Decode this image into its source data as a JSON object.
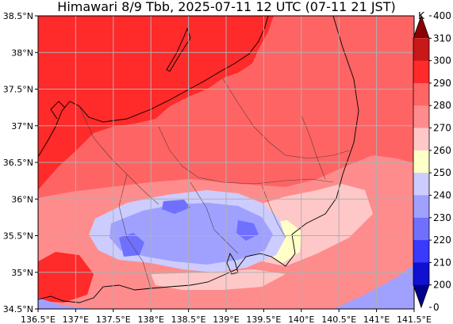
{
  "title": "Himawari 8/9 Tbb, 2025-07-11 12 UTC (07-11 21 JST)",
  "map": {
    "x_ticks": [
      "136.5°E",
      "137°E",
      "137.5°E",
      "138°E",
      "138.5°E",
      "139°E",
      "139.5°E",
      "140°E",
      "140.5°E",
      "141°E",
      "141.5°E"
    ],
    "y_ticks": [
      "38.5°N",
      "38°N",
      "37.5°N",
      "37°N",
      "36.5°N",
      "36°N",
      "35.5°N",
      "35°N",
      "34.5°N"
    ],
    "lon_range": [
      136.5,
      141.5
    ],
    "lat_range": [
      34.5,
      38.5
    ],
    "grid": true
  },
  "colorbar": {
    "unit": "K",
    "labels": [
      "400",
      "310",
      "300",
      "290",
      "280",
      "270",
      "260",
      "250",
      "240",
      "230",
      "220",
      "210",
      "200",
      "0"
    ],
    "colors": {
      "310_400": "#8b0000",
      "300_310": "#c81818",
      "290_300": "#ff2a2a",
      "280_290": "#ff6666",
      "270_280": "#ff8c8c",
      "260_270": "#ffc8c8",
      "250_260": "#ffffc8",
      "240_250": "#ccccff",
      "230_240": "#a0a0ff",
      "220_230": "#7070ff",
      "210_220": "#3a3aff",
      "200_210": "#1010d0",
      "0_200": "#00008b"
    }
  }
}
